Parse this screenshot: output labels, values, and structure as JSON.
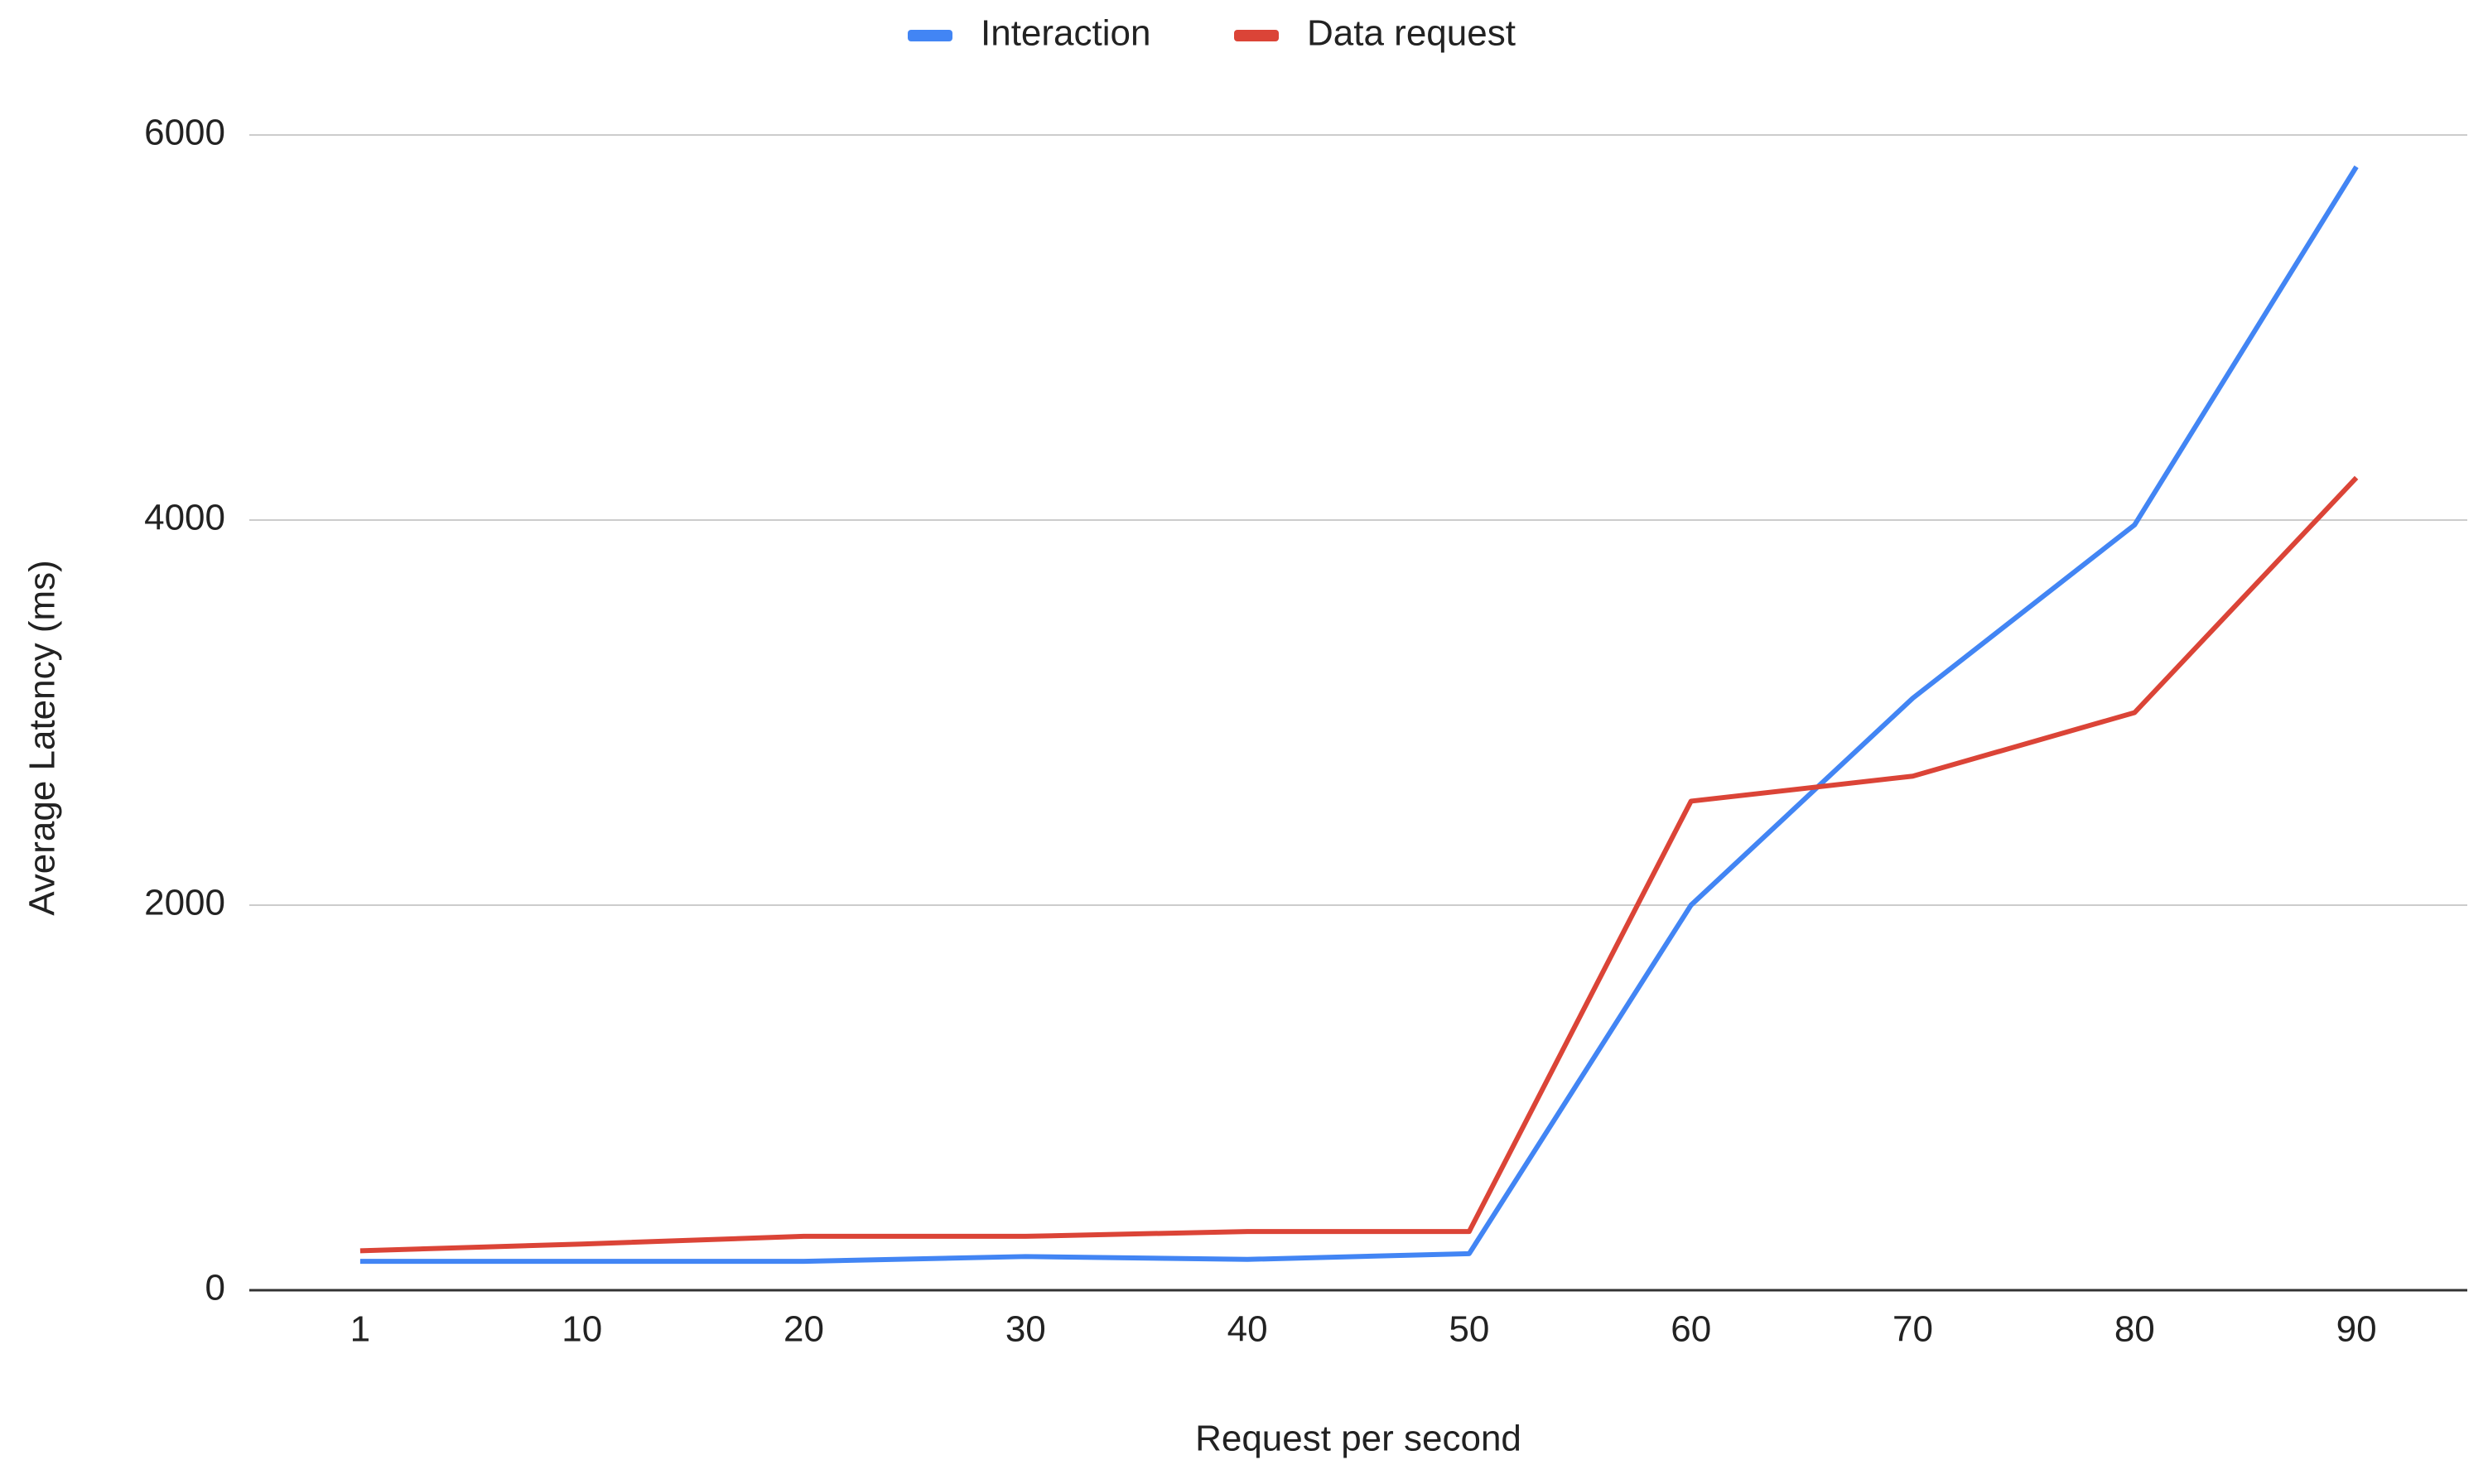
{
  "chart_data": {
    "type": "line",
    "x_label": "Request per second",
    "y_label": "Average Latency (ms)",
    "categories": [
      "1",
      "10",
      "20",
      "30",
      "40",
      "50",
      "60",
      "70",
      "80",
      "90"
    ],
    "series": [
      {
        "name": "Interaction",
        "color": "#4285f4",
        "values": [
          150,
          150,
          150,
          175,
          160,
          190,
          2000,
          3075,
          3975,
          5835
        ]
      },
      {
        "name": "Data request",
        "color": "#db4437",
        "values": [
          205,
          240,
          280,
          280,
          305,
          305,
          2540,
          2670,
          3000,
          4220
        ]
      }
    ],
    "ylim": [
      0,
      6000
    ],
    "yticks": [
      0,
      2000,
      4000,
      6000
    ],
    "grid": true,
    "legend": "top"
  }
}
